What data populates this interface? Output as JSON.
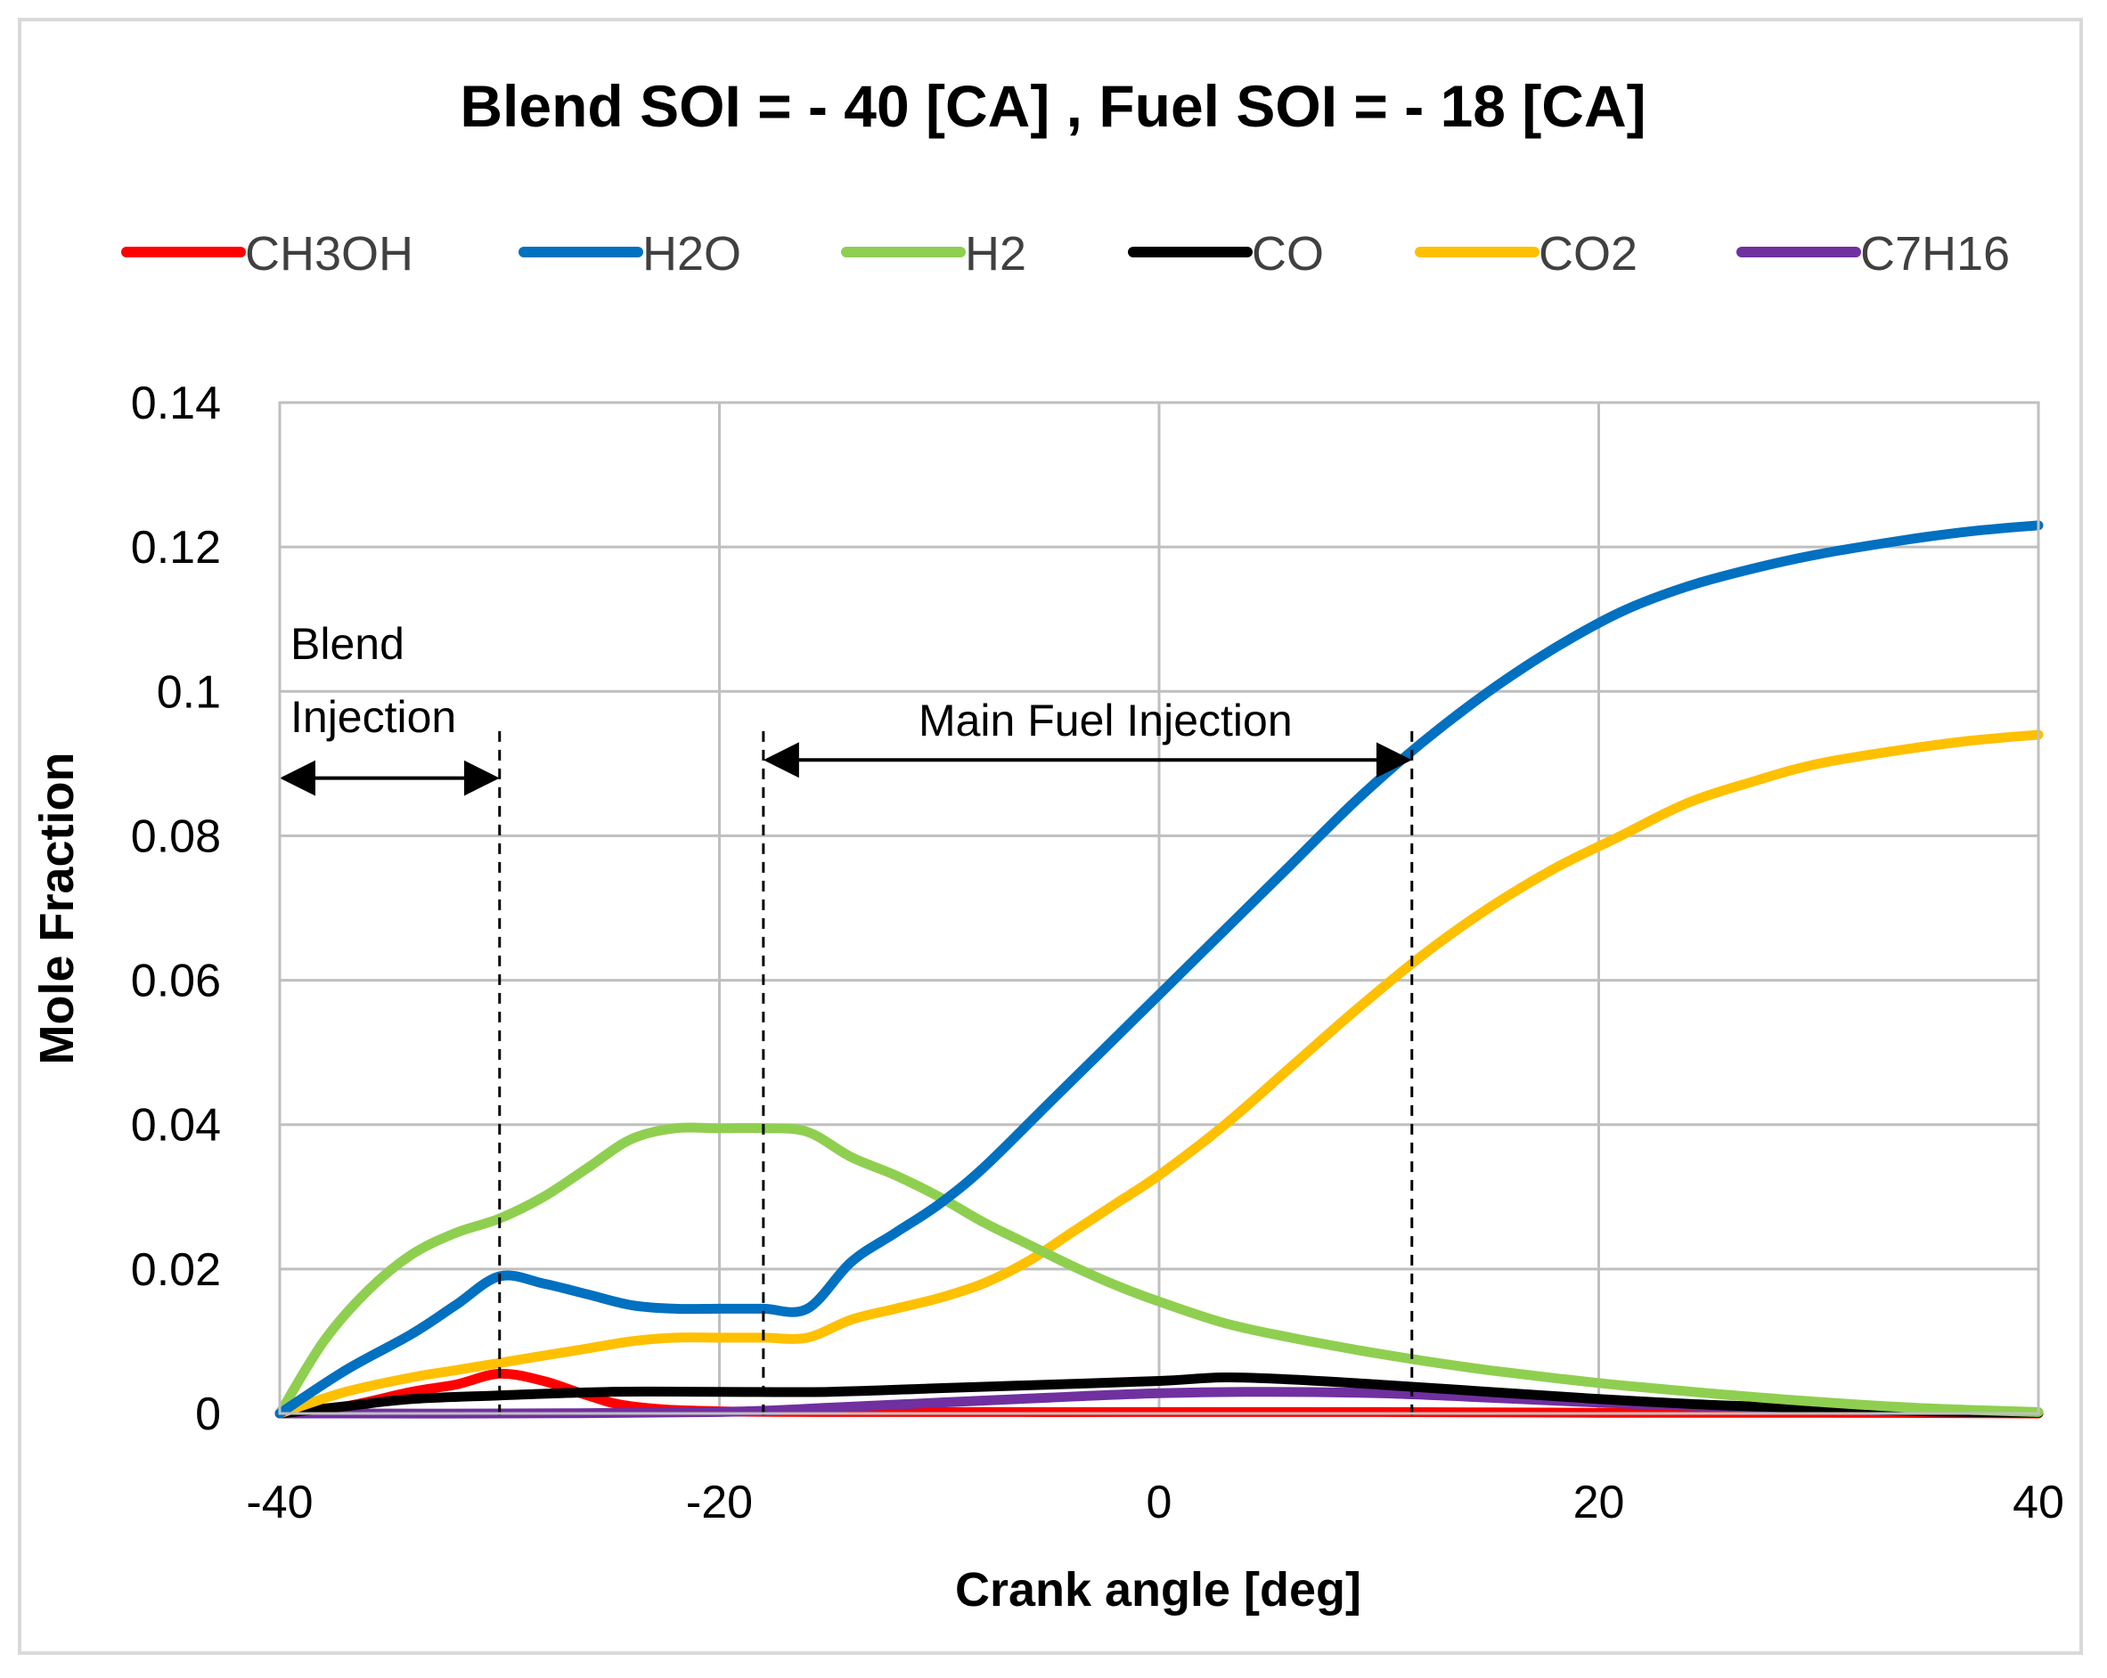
{
  "chart_data": {
    "type": "line",
    "title": "Blend SOI = - 40 [CA] , Fuel SOI = - 18 [CA]",
    "xlabel": "Crank angle [deg]",
    "ylabel": "Mole Fraction",
    "xlim": [
      -40,
      40
    ],
    "ylim": [
      0,
      0.14
    ],
    "xticks": [
      -40,
      -20,
      0,
      20,
      40
    ],
    "xtick_labels": [
      "-40",
      "-20",
      "0",
      "20",
      "40"
    ],
    "yticks": [
      0,
      0.02,
      0.04,
      0.06,
      0.08,
      0.1,
      0.12,
      0.14
    ],
    "ytick_labels": [
      "0",
      "0.02",
      "0.04",
      "0.06",
      "0.08",
      "0.1",
      "0.12",
      "0.14"
    ],
    "grid": true,
    "legend_position": "top",
    "series": [
      {
        "name": "CH3OH",
        "color": "#ff0000",
        "x": [
          -40,
          -37,
          -34,
          -32,
          -30,
          -28,
          -26,
          -24,
          -20,
          -10,
          0,
          10,
          20,
          30,
          40
        ],
        "y": [
          0,
          0.001,
          0.003,
          0.004,
          0.0055,
          0.0045,
          0.0025,
          0.001,
          0.0003,
          0.0002,
          0.0002,
          0.0002,
          0.0001,
          0.0001,
          0
        ]
      },
      {
        "name": "H2O",
        "color": "#0070c0",
        "x": [
          -40,
          -37,
          -34,
          -32,
          -30,
          -28,
          -26,
          -24,
          -22,
          -20,
          -18,
          -16,
          -14,
          -12,
          -10,
          -8,
          -5,
          -2,
          0,
          3,
          6,
          9,
          12,
          15,
          18,
          21,
          24,
          27,
          30,
          34,
          37,
          40
        ],
        "y": [
          0,
          0.006,
          0.011,
          0.015,
          0.019,
          0.018,
          0.0165,
          0.015,
          0.0145,
          0.0145,
          0.0145,
          0.0145,
          0.021,
          0.025,
          0.029,
          0.034,
          0.043,
          0.052,
          0.058,
          0.067,
          0.076,
          0.085,
          0.093,
          0.1,
          0.106,
          0.111,
          0.1145,
          0.117,
          0.119,
          0.121,
          0.1222,
          0.123
        ]
      },
      {
        "name": "H2",
        "color": "#8fcf50",
        "x": [
          -40,
          -38,
          -36,
          -34,
          -32,
          -30,
          -28,
          -26,
          -24,
          -22,
          -20,
          -18,
          -16,
          -14,
          -12,
          -10,
          -8,
          -6,
          -4,
          -2,
          0,
          3,
          6,
          9,
          12,
          15,
          18,
          21,
          25,
          30,
          35,
          40
        ],
        "y": [
          0,
          0.01,
          0.017,
          0.022,
          0.025,
          0.027,
          0.03,
          0.034,
          0.038,
          0.0395,
          0.0395,
          0.0395,
          0.039,
          0.0355,
          0.033,
          0.03,
          0.0265,
          0.0235,
          0.0205,
          0.0178,
          0.0155,
          0.0125,
          0.0105,
          0.0088,
          0.0073,
          0.006,
          0.0049,
          0.0039,
          0.0028,
          0.0016,
          0.0007,
          0.0002
        ]
      },
      {
        "name": "CO",
        "color": "#000000",
        "x": [
          -40,
          -37,
          -34,
          -30,
          -25,
          -20,
          -15,
          -10,
          -5,
          0,
          3,
          6,
          10,
          15,
          20,
          25,
          30,
          35,
          40
        ],
        "y": [
          0,
          0.001,
          0.002,
          0.0025,
          0.003,
          0.003,
          0.003,
          0.0035,
          0.004,
          0.0045,
          0.005,
          0.0047,
          0.004,
          0.003,
          0.002,
          0.0012,
          0.0007,
          0.0003,
          0.0001
        ]
      },
      {
        "name": "CO2",
        "color": "#ffc000",
        "x": [
          -40,
          -37,
          -34,
          -32,
          -30,
          -28,
          -26,
          -24,
          -22,
          -20,
          -18,
          -16,
          -14,
          -12,
          -10,
          -8,
          -6,
          -4,
          -2,
          0,
          3,
          6,
          9,
          12,
          15,
          18,
          21,
          24,
          27,
          30,
          34,
          37,
          40
        ],
        "y": [
          0,
          0.003,
          0.005,
          0.006,
          0.007,
          0.008,
          0.009,
          0.01,
          0.0105,
          0.0105,
          0.0105,
          0.0105,
          0.013,
          0.0145,
          0.016,
          0.018,
          0.021,
          0.025,
          0.029,
          0.033,
          0.04,
          0.048,
          0.056,
          0.0635,
          0.07,
          0.0755,
          0.08,
          0.0845,
          0.0875,
          0.09,
          0.092,
          0.0932,
          0.094
        ]
      },
      {
        "name": "C7H16",
        "color": "#7030a0",
        "x": [
          -40,
          -30,
          -20,
          -15,
          -10,
          -5,
          0,
          5,
          10,
          15,
          20,
          25,
          30,
          35,
          40
        ],
        "y": [
          0,
          0,
          0.0002,
          0.0008,
          0.0015,
          0.0022,
          0.0028,
          0.003,
          0.0028,
          0.0022,
          0.0015,
          0.001,
          0.0006,
          0.0003,
          0.0001
        ]
      }
    ],
    "annotations": [
      {
        "text_lines": [
          "Blend",
          "Injection"
        ],
        "x_start": -40,
        "x_end": -30,
        "arrow_y": 0.088
      },
      {
        "text_lines": [
          "Main Fuel Injection"
        ],
        "x_start": -18,
        "x_end": 11.5,
        "arrow_y": 0.0905
      }
    ],
    "guide_lines_x": [
      -30,
      -18,
      11.5
    ]
  }
}
